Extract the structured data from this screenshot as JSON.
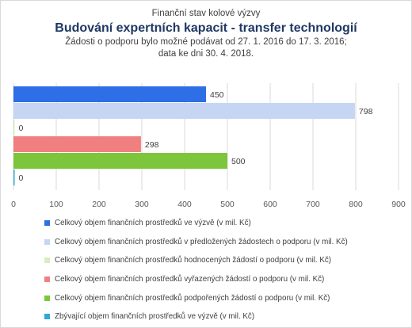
{
  "chart_data": {
    "type": "bar",
    "orientation": "horizontal",
    "supertitle": "Finanční stav kolové výzvy",
    "title": "Budování expertních kapacit - transfer technologií",
    "subtitle_line1": "Žádosti o podporu bylo možné podávat od 27. 1. 2016 do 17. 3. 2016;",
    "subtitle_line2": "data ke dni 30. 4. 2018.",
    "xlim": [
      0,
      900
    ],
    "x_ticks": [
      "0",
      "100",
      "200",
      "300",
      "400",
      "500",
      "600",
      "700",
      "800",
      "900"
    ],
    "grid": "vertical",
    "legend_position": "bottom",
    "series": [
      {
        "name": "Celkový objem finančních prostředků ve výzvě (v mil. Kč)",
        "value": 450,
        "label": "450",
        "color": "#2e6ee6"
      },
      {
        "name": "Celkový objem finančních prostředků v předložených žádostech o podporu (v mil. Kč)",
        "value": 798,
        "label": "798",
        "color": "#c6d5f3"
      },
      {
        "name": "Celkový objem finančních prostředků hodnocených žádostí o podporu (v mil. Kč)",
        "value": 0,
        "label": "0",
        "color": "#d8edc0"
      },
      {
        "name": "Celkový objem finančních prostředků vyřazených žádostí o podporu (v mil. Kč)",
        "value": 298,
        "label": "298",
        "color": "#f08080"
      },
      {
        "name": "Celkový objem finančních prostředků podpořených žádostí o podporu (v mil. Kč)",
        "value": 500,
        "label": "500",
        "color": "#7dc63c"
      },
      {
        "name": "Zbývající objem finančních prostředků ve výzvě (v mil. Kč)",
        "value": 0,
        "label": "0",
        "color": "#31a8d8"
      }
    ]
  }
}
